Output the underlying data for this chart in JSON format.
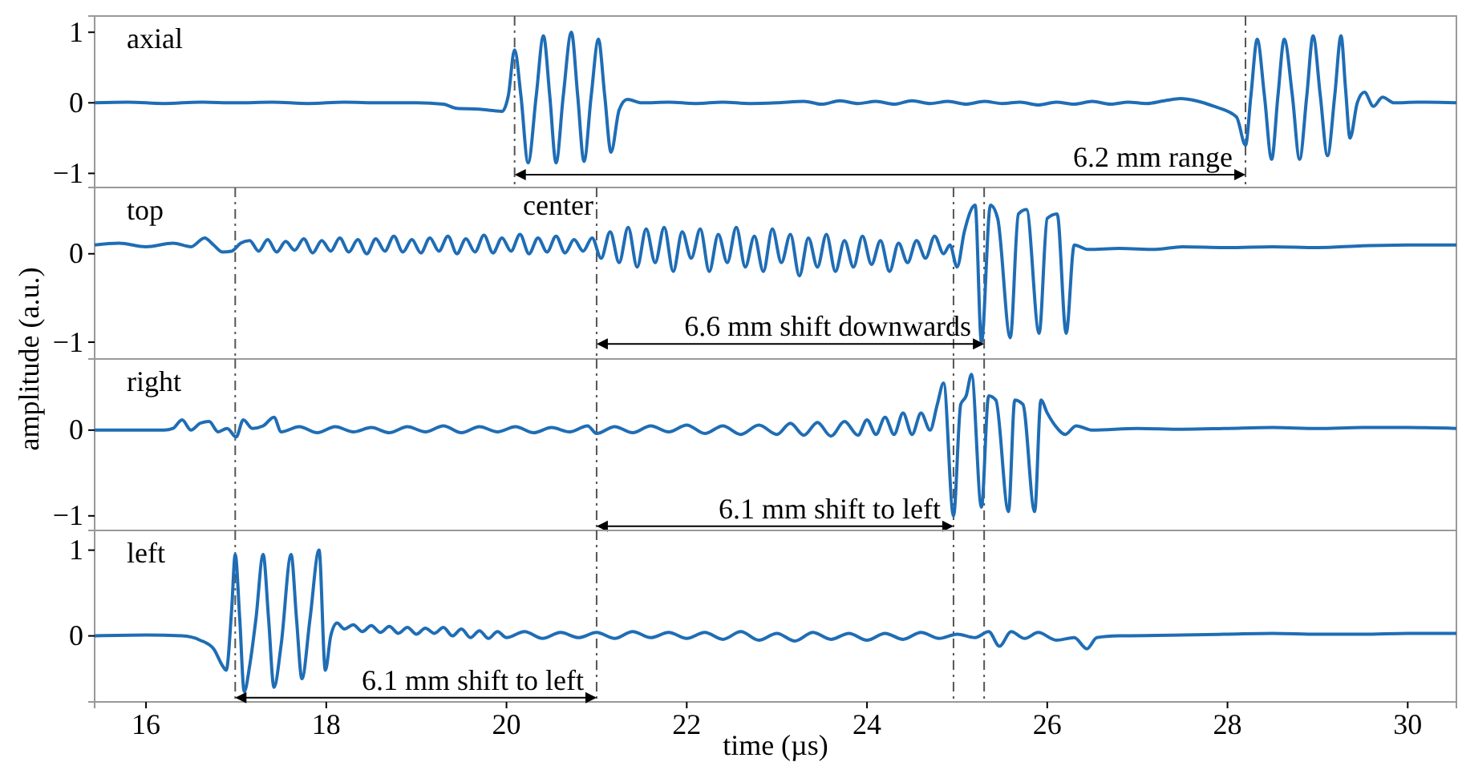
{
  "chart_data": [
    {
      "type": "line",
      "title": "axial",
      "xlim": [
        15.43,
        30.54
      ],
      "ylim": [
        -1.2,
        1.23
      ],
      "yticks": [
        -1,
        0,
        1
      ],
      "tick_labels": "y",
      "line_style": "solid",
      "series": [
        {
          "color": "#1f6db5",
          "x": [
            15.43,
            15.8,
            16.2,
            16.6,
            17.0,
            17.4,
            17.8,
            18.2,
            18.6,
            19.0,
            19.3,
            19.45,
            19.7,
            19.95,
            20.02,
            20.09,
            20.16,
            20.24,
            20.33,
            20.41,
            20.48,
            20.55,
            20.63,
            20.72,
            20.79,
            20.86,
            20.94,
            21.02,
            21.09,
            21.16,
            21.25,
            21.34,
            21.5,
            21.8,
            22.1,
            22.4,
            22.7,
            23.0,
            23.3,
            23.5,
            23.7,
            23.9,
            24.1,
            24.3,
            24.5,
            24.7,
            24.9,
            25.1,
            25.3,
            25.5,
            25.7,
            25.9,
            26.1,
            26.3,
            26.5,
            26.7,
            26.9,
            27.1,
            27.3,
            27.48,
            27.65,
            27.85,
            28.1,
            28.2,
            28.26,
            28.33,
            28.41,
            28.49,
            28.56,
            28.63,
            28.72,
            28.8,
            28.88,
            28.95,
            29.03,
            29.11,
            29.19,
            29.26,
            29.31,
            29.36,
            29.44,
            29.52,
            29.62,
            29.72,
            29.85,
            30.1,
            30.54
          ],
          "values": [
            0,
            0.01,
            -0.01,
            0.01,
            0,
            0.01,
            -0.01,
            0.01,
            0,
            0,
            -0.02,
            -0.08,
            -0.09,
            -0.12,
            0.1,
            0.75,
            0.1,
            -0.85,
            0.1,
            0.95,
            0.1,
            -0.85,
            0.1,
            1.0,
            0.1,
            -0.83,
            0.1,
            0.9,
            0.1,
            -0.7,
            -0.1,
            0.05,
            0,
            0.01,
            -0.01,
            0.01,
            -0.01,
            0,
            0.02,
            -0.02,
            0.03,
            -0.01,
            0.02,
            -0.02,
            0.03,
            -0.01,
            0.02,
            -0.02,
            0.02,
            -0.01,
            0.01,
            -0.03,
            0.01,
            -0.02,
            0.02,
            -0.02,
            0.01,
            -0.01,
            0.03,
            0.06,
            0.03,
            -0.05,
            -0.2,
            -0.6,
            0.1,
            0.9,
            0.1,
            -0.8,
            0.1,
            0.9,
            0.1,
            -0.8,
            0.1,
            0.95,
            0.1,
            -0.75,
            0.1,
            0.95,
            0.2,
            -0.5,
            0,
            0.15,
            -0.05,
            0.08,
            0,
            0.01,
            0
          ]
        }
      ],
      "ref_lines": [
        {
          "axis": "x",
          "value": 20.09,
          "color": "#555555",
          "line_style": "dashed"
        },
        {
          "axis": "x",
          "value": 28.2,
          "color": "#555555",
          "line_style": "dashed"
        }
      ],
      "annotations": [
        "6.2 mm range"
      ]
    },
    {
      "type": "line",
      "title": "top",
      "ylabel": "amplitude (a.u.)",
      "xlim": [
        15.43,
        30.54
      ],
      "ylim": [
        -1.19,
        0.75
      ],
      "yticks": [
        -1,
        0
      ],
      "tick_labels": "y",
      "line_style": "solid",
      "series": [
        {
          "color": "#1f6db5",
          "x": [
            15.43,
            15.7,
            16.0,
            16.3,
            16.5,
            16.65,
            16.75,
            16.85,
            16.95,
            17.05,
            17.15,
            17.25,
            17.35,
            17.45,
            17.55,
            17.65,
            17.75,
            17.85,
            17.95,
            18.05,
            18.15,
            18.25,
            18.35,
            18.45,
            18.55,
            18.65,
            18.75,
            18.85,
            18.95,
            19.05,
            19.15,
            19.25,
            19.35,
            19.45,
            19.55,
            19.65,
            19.75,
            19.85,
            19.95,
            20.05,
            20.15,
            20.25,
            20.35,
            20.45,
            20.55,
            20.65,
            20.75,
            20.85,
            20.95,
            21.05,
            21.15,
            21.25,
            21.35,
            21.45,
            21.55,
            21.65,
            21.75,
            21.85,
            21.95,
            22.05,
            22.15,
            22.25,
            22.35,
            22.45,
            22.55,
            22.65,
            22.75,
            22.85,
            22.95,
            23.05,
            23.15,
            23.25,
            23.35,
            23.45,
            23.55,
            23.65,
            23.75,
            23.85,
            23.95,
            24.05,
            24.15,
            24.25,
            24.35,
            24.45,
            24.55,
            24.65,
            24.75,
            24.85,
            24.92,
            25.0,
            25.08,
            25.2,
            25.27,
            25.37,
            25.45,
            25.59,
            25.68,
            25.77,
            25.91,
            26.0,
            26.11,
            26.21,
            26.3,
            26.45,
            26.8,
            27.2,
            27.5,
            28.0,
            28.5,
            29.0,
            29.5,
            30.0,
            30.54
          ],
          "values": [
            0.1,
            0.12,
            0.08,
            0.12,
            0.08,
            0.18,
            0.1,
            0.02,
            0.03,
            0.12,
            0.15,
            0.03,
            0.16,
            0.02,
            0.14,
            0.04,
            0.17,
            0.01,
            0.15,
            0.03,
            0.18,
            0.02,
            0.16,
            0,
            0.17,
            0.03,
            0.2,
            0.02,
            0.16,
            0.01,
            0.18,
            0.03,
            0.2,
            0,
            0.17,
            0.02,
            0.21,
            0.01,
            0.18,
            0.03,
            0.22,
            0,
            0.18,
            0.02,
            0.2,
            0.01,
            0.16,
            0.03,
            0.18,
            -0.05,
            0.25,
            -0.1,
            0.3,
            -0.15,
            0.28,
            -0.1,
            0.3,
            -0.2,
            0.25,
            -0.05,
            0.28,
            -0.2,
            0.22,
            -0.1,
            0.3,
            -0.15,
            0.2,
            -0.2,
            0.28,
            -0.1,
            0.22,
            -0.25,
            0.18,
            -0.15,
            0.22,
            -0.2,
            0.15,
            -0.15,
            0.2,
            -0.12,
            0.15,
            -0.2,
            0.12,
            -0.1,
            0.15,
            -0.05,
            0.2,
            0,
            0.1,
            -0.15,
            0.25,
            0.55,
            -1.0,
            0.55,
            0.4,
            -0.95,
            0.45,
            0.5,
            -0.9,
            0.4,
            0.45,
            -0.9,
            0.1,
            0.05,
            0.06,
            0.05,
            0.08,
            0.07,
            0.08,
            0.07,
            0.09,
            0.1,
            0.1
          ]
        }
      ],
      "ref_lines": [
        {
          "axis": "x",
          "value": 21.0,
          "label": "center",
          "color": "#555555",
          "line_style": "dashed"
        },
        {
          "axis": "x",
          "value": 25.3,
          "color": "#555555",
          "line_style": "dashed"
        },
        {
          "axis": "x",
          "value": 16.99,
          "color": "#555555",
          "line_style": "dashed"
        },
        {
          "axis": "x",
          "value": 24.96,
          "color": "#555555",
          "line_style": "dashed"
        }
      ],
      "annotations": [
        {
          "text": "6.6 mm shift downwards",
          "x": 25.3,
          "y": -1.02
        }
      ]
    },
    {
      "type": "line",
      "title": "right",
      "xlim": [
        15.43,
        30.54
      ],
      "ylim": [
        -1.17,
        0.83
      ],
      "yticks": [
        -1,
        0
      ],
      "tick_labels": "y",
      "line_style": "solid",
      "series": [
        {
          "color": "#1f6db5",
          "x": [
            15.43,
            16.2,
            16.3,
            16.4,
            16.5,
            16.6,
            16.7,
            16.8,
            16.9,
            17.0,
            17.08,
            17.18,
            17.3,
            17.42,
            17.5,
            17.7,
            17.9,
            18.1,
            18.3,
            18.5,
            18.7,
            18.9,
            19.1,
            19.3,
            19.5,
            19.7,
            19.9,
            20.1,
            20.3,
            20.5,
            20.7,
            20.9,
            21.0,
            21.2,
            21.4,
            21.6,
            21.8,
            22.0,
            22.2,
            22.4,
            22.6,
            22.8,
            23.0,
            23.15,
            23.3,
            23.45,
            23.6,
            23.75,
            23.9,
            24.0,
            24.1,
            24.2,
            24.3,
            24.4,
            24.5,
            24.6,
            24.7,
            24.78,
            24.85,
            24.96,
            25.04,
            25.1,
            25.16,
            25.27,
            25.35,
            25.43,
            25.57,
            25.64,
            25.73,
            25.86,
            25.93,
            26.0,
            26.09,
            26.2,
            26.32,
            26.5,
            27.0,
            27.5,
            28.0,
            28.5,
            29.0,
            29.5,
            30.0,
            30.54
          ],
          "values": [
            0,
            0,
            0.02,
            0.12,
            0,
            0.08,
            0.1,
            -0.02,
            0.02,
            -0.08,
            0.12,
            0.02,
            0.05,
            0.15,
            -0.02,
            0.04,
            -0.03,
            0.04,
            -0.02,
            0.03,
            -0.03,
            0.04,
            -0.02,
            0.05,
            -0.03,
            0.04,
            -0.02,
            0.04,
            -0.03,
            0.03,
            -0.02,
            0.05,
            -0.04,
            0.04,
            -0.03,
            0.05,
            -0.02,
            0.06,
            -0.04,
            0.05,
            -0.05,
            0.06,
            -0.05,
            0.08,
            -0.06,
            0.09,
            -0.07,
            0.1,
            -0.06,
            0.12,
            -0.05,
            0.15,
            -0.05,
            0.2,
            -0.05,
            0.2,
            0,
            0.3,
            0.55,
            -1.0,
            0.3,
            0.4,
            0.65,
            -0.9,
            0.4,
            0.35,
            -0.95,
            0.35,
            0.3,
            -0.95,
            0.35,
            0.2,
            0.05,
            -0.05,
            0.05,
            0,
            0.02,
            0.01,
            0.02,
            0.03,
            0.02,
            0.03,
            0.03,
            0.02
          ]
        }
      ],
      "ref_lines": [
        {
          "axis": "x",
          "value": 21.0,
          "color": "#555555",
          "line_style": "dashed"
        },
        {
          "axis": "x",
          "value": 24.96,
          "color": "#555555",
          "line_style": "dashed"
        },
        {
          "axis": "x",
          "value": 16.99,
          "color": "#555555",
          "line_style": "dashed"
        },
        {
          "axis": "x",
          "value": 25.3,
          "color": "#555555",
          "line_style": "dashed"
        }
      ],
      "annotations": [
        {
          "text": "6.1 mm shift to left",
          "x": 24.96,
          "y": -1.12
        }
      ]
    },
    {
      "type": "line",
      "title": "left",
      "xlabel": "time (µs)",
      "xlim": [
        15.43,
        30.54
      ],
      "xticks": [
        16,
        18,
        20,
        22,
        24,
        26,
        28,
        30
      ],
      "ylim": [
        -0.77,
        1.23
      ],
      "yticks": [
        0,
        1
      ],
      "line_style": "solid",
      "series": [
        {
          "color": "#1f6db5",
          "x": [
            15.43,
            16.0,
            16.4,
            16.6,
            16.75,
            16.85,
            16.89,
            16.95,
            16.99,
            17.04,
            17.09,
            17.15,
            17.22,
            17.3,
            17.36,
            17.42,
            17.5,
            17.61,
            17.67,
            17.73,
            17.82,
            17.92,
            17.99,
            18.05,
            18.12,
            18.2,
            18.3,
            18.4,
            18.5,
            18.6,
            18.7,
            18.8,
            18.9,
            19.0,
            19.1,
            19.2,
            19.3,
            19.4,
            19.5,
            19.6,
            19.7,
            19.8,
            19.9,
            20.0,
            20.2,
            20.4,
            20.6,
            20.8,
            21.0,
            21.2,
            21.4,
            21.6,
            21.8,
            22.0,
            22.2,
            22.4,
            22.6,
            22.8,
            23.0,
            23.2,
            23.4,
            23.6,
            23.8,
            24.0,
            24.2,
            24.4,
            24.6,
            24.8,
            25.0,
            25.2,
            25.35,
            25.47,
            25.6,
            25.75,
            25.9,
            26.1,
            26.3,
            26.44,
            26.55,
            26.8,
            27.5,
            28.0,
            28.5,
            29.0,
            29.5,
            30.0,
            30.54
          ],
          "values": [
            0,
            0.01,
            0,
            -0.05,
            -0.15,
            -0.35,
            -0.4,
            0.3,
            0.95,
            0.2,
            -0.65,
            -0.35,
            0.2,
            0.95,
            0.2,
            -0.6,
            -0.1,
            0.95,
            0.2,
            -0.5,
            0.2,
            1.0,
            -0.4,
            0,
            0.15,
            0.08,
            0.13,
            0.05,
            0.12,
            0.04,
            0.11,
            0.03,
            0.1,
            0.02,
            0.09,
            0.03,
            0.1,
            0,
            0.08,
            -0.02,
            0.06,
            -0.03,
            0.05,
            -0.02,
            0.05,
            -0.03,
            0.04,
            -0.02,
            0.04,
            -0.03,
            0.05,
            -0.02,
            0.04,
            -0.03,
            0.04,
            -0.04,
            0.05,
            -0.05,
            0.03,
            -0.06,
            0.04,
            -0.04,
            0.03,
            -0.05,
            0.03,
            -0.04,
            0.04,
            -0.03,
            0.02,
            -0.02,
            0.05,
            -0.12,
            0.05,
            -0.03,
            0.04,
            -0.05,
            -0.02,
            -0.15,
            -0.02,
            0,
            0.01,
            0.02,
            0.03,
            0.02,
            0.02,
            0.03,
            0.03
          ]
        }
      ],
      "ref_lines": [
        {
          "axis": "x",
          "value": 16.99,
          "color": "#555555",
          "line_style": "dashed"
        },
        {
          "axis": "x",
          "value": 21.0,
          "color": "#555555",
          "line_style": "dashed"
        },
        {
          "axis": "x",
          "value": 24.96,
          "color": "#555555",
          "line_style": "dashed"
        },
        {
          "axis": "x",
          "value": 25.3,
          "color": "#555555",
          "line_style": "dashed"
        }
      ],
      "annotations": [
        {
          "text": "6.1 mm shift to left",
          "x": 21.0,
          "y": -0.72
        }
      ]
    }
  ]
}
